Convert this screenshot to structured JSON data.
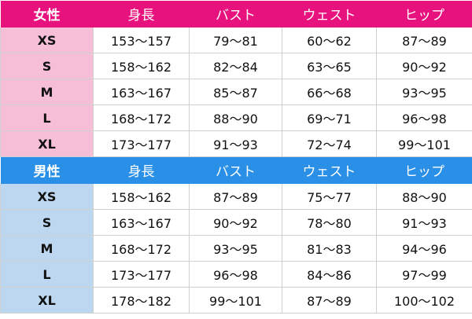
{
  "sections": [
    {
      "header": [
        "女性",
        "身長",
        "バスト",
        "ウェスト",
        "ヒップ"
      ],
      "rows": [
        [
          "XS",
          "153～157",
          "79～81",
          "60～62",
          "87～89"
        ],
        [
          "S",
          "158～162",
          "82～84",
          "63～65",
          "90～92"
        ],
        [
          "M",
          "163～167",
          "85～87",
          "66～68",
          "93～95"
        ],
        [
          "L",
          "168～172",
          "88～90",
          "69～71",
          "96～98"
        ],
        [
          "XL",
          "173～177",
          "91～93",
          "72～74",
          "99～101"
        ]
      ]
    },
    {
      "header": [
        "男性",
        "身長",
        "バスト",
        "ウェスト",
        "ヒップ"
      ],
      "rows": [
        [
          "XS",
          "158～162",
          "87～89",
          "75～77",
          "88～90"
        ],
        [
          "S",
          "163～167",
          "90～92",
          "78～80",
          "91～93"
        ],
        [
          "M",
          "168～172",
          "93～95",
          "81～83",
          "94～96"
        ],
        [
          "L",
          "173～177",
          "96～98",
          "84～86",
          "97～99"
        ],
        [
          "XL",
          "178～182",
          "99～101",
          "87～89",
          "100～102"
        ]
      ]
    }
  ]
}
